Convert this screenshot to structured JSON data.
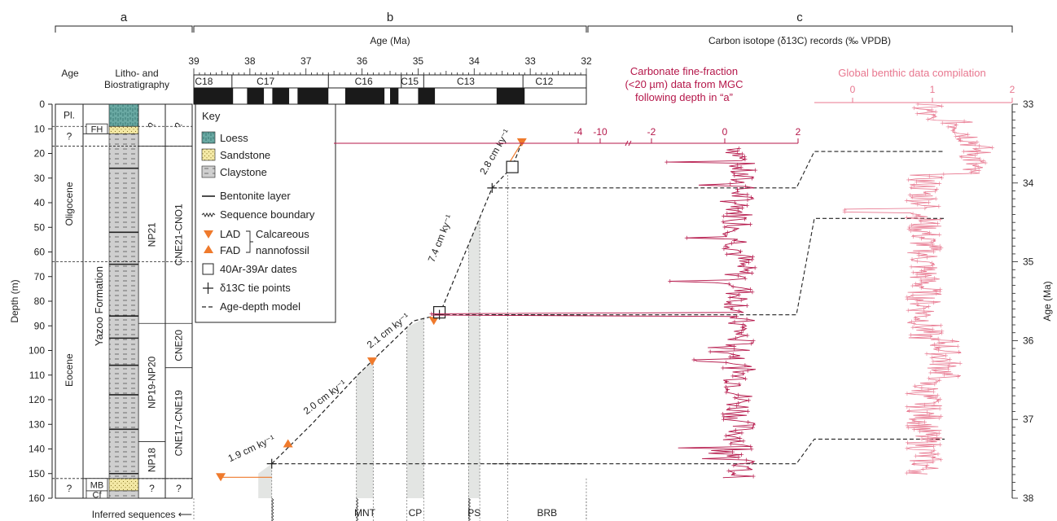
{
  "figure": {
    "panel_labels": [
      "a",
      "b",
      "c"
    ],
    "age_axis_title": "Age (Ma)",
    "carbon_title": "Carbon isotope (δ13C) records (‰ VPDB)",
    "depth_axis_title": "Depth (m)",
    "right_axis_title": "Age (Ma)",
    "col_age_header": "Age",
    "col_litho_header_1": "Litho- and",
    "col_litho_header_2": "Biostratigraphy",
    "inferred_sequences": "Inferred sequences ⟵"
  },
  "panel_a": {
    "epochs": [
      {
        "label": "Pl.",
        "from": 0,
        "to": 9
      },
      {
        "label": "?",
        "from": 9,
        "to": 17
      },
      {
        "label": "Oligocene",
        "from": 17,
        "to": 64
      },
      {
        "label": "Eocene",
        "from": 64,
        "to": 152
      },
      {
        "label": "?",
        "from": 152,
        "to": 160
      }
    ],
    "formation_label": "Yazoo Formation",
    "small_units": [
      {
        "label": "FH",
        "from": 8,
        "to": 12
      },
      {
        "label": "MB",
        "from": 152,
        "to": 157
      },
      {
        "label": "Cf",
        "from": 157,
        "to": 160
      }
    ],
    "np_zones": [
      {
        "label": "?",
        "from": 0,
        "to": 17
      },
      {
        "label": "NP21",
        "from": 17,
        "to": 89
      },
      {
        "label": "NP19-NP20",
        "from": 89,
        "to": 137
      },
      {
        "label": "NP18",
        "from": 137,
        "to": 152
      },
      {
        "label": "?",
        "from": 152,
        "to": 160
      }
    ],
    "cne_zones": [
      {
        "label": "?",
        "from": 0,
        "to": 17
      },
      {
        "label": "CNE21-CNO1",
        "from": 17,
        "to": 89
      },
      {
        "label": "CNE20",
        "from": 89,
        "to": 107
      },
      {
        "label": "CNE17-CNE19",
        "from": 107,
        "to": 152
      },
      {
        "label": "?",
        "from": 152,
        "to": 160
      }
    ],
    "lithology": [
      {
        "type": "loess",
        "from": 0,
        "to": 9
      },
      {
        "type": "sandstone",
        "from": 9,
        "to": 12
      },
      {
        "type": "claystone",
        "from": 12,
        "to": 152
      },
      {
        "type": "sandstone",
        "from": 152,
        "to": 157
      },
      {
        "type": "claystone",
        "from": 157,
        "to": 160
      }
    ],
    "bentonite_layers": [
      26,
      52,
      65,
      86,
      95,
      106,
      118,
      132,
      150
    ],
    "dashed_boundaries": [
      9,
      17,
      64,
      152
    ]
  },
  "key": {
    "title": "Key",
    "items": {
      "loess": "Loess",
      "sandstone": "Sandstone",
      "claystone": "Claystone",
      "bentonite": "Bentonite layer",
      "sequence": "Sequence boundary",
      "lad": "LAD",
      "fad": "FAD",
      "calcareous": "Calcareous",
      "nannofossil": "nannofossil",
      "ar_dates": "40Ar-39Ar dates",
      "tie_points": "δ13C tie points",
      "age_depth": "Age-depth model"
    }
  },
  "chron_bar": {
    "labels": [
      {
        "label": "C18",
        "age": 38.82
      },
      {
        "label": "C17",
        "age": 37.72
      },
      {
        "label": "C16",
        "age": 35.97
      },
      {
        "label": "C15",
        "age": 35.15
      },
      {
        "label": "C13",
        "age": 34.15
      },
      {
        "label": "C12",
        "age": 32.75
      }
    ],
    "black_segments": [
      [
        39.0,
        38.3
      ],
      [
        38.05,
        37.75
      ],
      [
        37.6,
        37.3
      ],
      [
        37.15,
        36.6
      ],
      [
        36.3,
        35.6
      ],
      [
        35.5,
        35.35
      ],
      [
        35.0,
        34.7
      ],
      [
        33.6,
        33.1
      ]
    ],
    "boundaries": [
      38.32,
      36.6,
      35.3,
      34.9,
      33.13
    ]
  },
  "chart_data": [
    {
      "type": "scatter",
      "title": "",
      "xlabel": "Age (Ma)",
      "ylabel": "Depth (m)",
      "xlim": [
        39,
        32
      ],
      "ylim": [
        160,
        0
      ],
      "x_ticks": [
        39,
        38,
        37,
        36,
        35,
        34,
        33,
        32
      ],
      "y_ticks": [
        0,
        10,
        20,
        30,
        40,
        50,
        60,
        70,
        80,
        90,
        100,
        110,
        120,
        130,
        140,
        150,
        160
      ],
      "series": [
        {
          "name": "LAD",
          "points": [
            [
              38.52,
              151.5
            ],
            [
              35.82,
              104.5
            ],
            [
              34.72,
              88
            ],
            [
              33.15,
              15.5
            ]
          ]
        },
        {
          "name": "FAD",
          "points": [
            [
              37.32,
              138
            ]
          ]
        },
        {
          "name": "40Ar-39Ar dates",
          "points": [
            [
              34.62,
              84.5
            ],
            [
              33.32,
              25.5
            ]
          ]
        },
        {
          "name": "δ13C tie points",
          "points": [
            [
              37.61,
              146
            ],
            [
              34.62,
              85.5
            ],
            [
              33.68,
              34
            ]
          ]
        },
        {
          "name": "Age-depth model",
          "points": [
            [
              37.61,
              146
            ],
            [
              36.9,
              130
            ],
            [
              36.08,
              110
            ],
            [
              35.08,
              88
            ],
            [
              34.62,
              85.5
            ],
            [
              33.68,
              34
            ],
            [
              33.32,
              25.5
            ],
            [
              33.15,
              15.5
            ]
          ]
        }
      ],
      "rate_labels": [
        {
          "text": "1.9 cm ky⁻¹",
          "age": 37.95,
          "depth": 141
        },
        {
          "text": "2.0 cm ky⁻¹",
          "age": 36.63,
          "depth": 120
        },
        {
          "text": "2.1 cm ky⁻¹",
          "age": 35.5,
          "depth": 93
        },
        {
          "text": "7.4 cm ky⁻¹",
          "age": 34.55,
          "depth": 55
        },
        {
          "text": "2.8 cm ky⁻¹",
          "age": 33.58,
          "depth": 20
        }
      ],
      "sequences": [
        {
          "label": "MNT",
          "from": 36.1,
          "to": 35.8
        },
        {
          "label": "CP",
          "from": 35.2,
          "to": 34.9
        },
        {
          "label": "PS",
          "from": 34.1,
          "to": 33.9
        },
        {
          "label": "BRB",
          "from": 33.4,
          "to": 32.0
        }
      ]
    },
    {
      "type": "line",
      "title": "Carbonate fine-fraction (<20 µm) data from MGC following depth in \"a\"",
      "title_lines": [
        "Carbonate fine-fraction",
        "(<20 µm) data from MGC",
        "following depth in “a”"
      ],
      "xlabel": "δ13C (‰ VPDB)",
      "x_ticks": [
        -10,
        -4,
        -2,
        0,
        2
      ],
      "color": "#b5174a",
      "series": [
        {
          "name": "Carbonate fine-fraction (<20 µm) data from MGC",
          "depth_range": [
            18,
            152
          ],
          "typical_value": 0.4,
          "min_value": -8.0,
          "min_at_depth": 85.5
        }
      ]
    },
    {
      "type": "line",
      "title": "Global benthic data compilation",
      "xlabel": "δ13C (‰ VPDB)",
      "x_ticks": [
        0,
        1,
        2
      ],
      "ylabel": "Age (Ma)",
      "y_ticks": [
        33,
        34,
        35,
        36,
        37,
        38
      ],
      "ylim": [
        33,
        38
      ],
      "color": "#e8778f",
      "series": [
        {
          "name": "Global benthic data compilation",
          "age_range": [
            33.0,
            37.7
          ],
          "typical_value": 0.9,
          "max_value": 1.65,
          "max_at_age": 33.6
        }
      ]
    }
  ]
}
